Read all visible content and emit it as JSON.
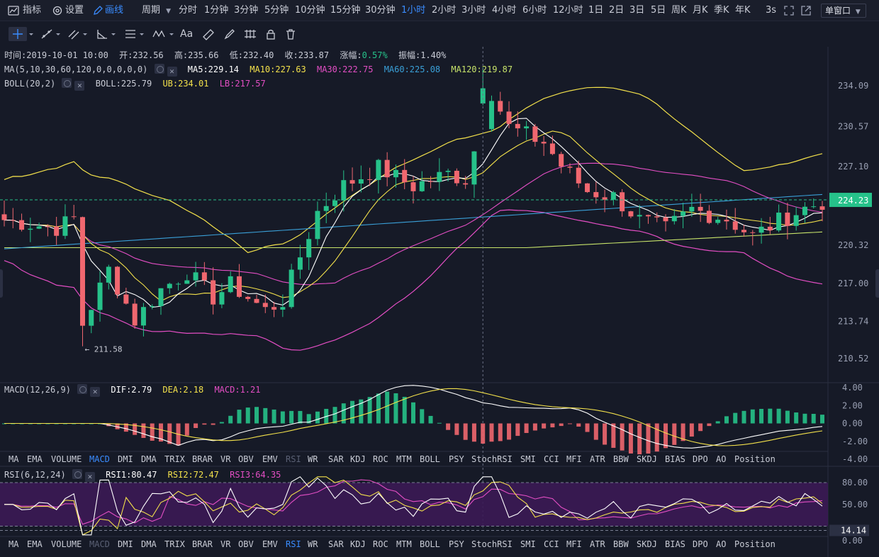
{
  "toolbar": {
    "indicator": "指标",
    "settings": "设置",
    "draw": "画线",
    "period": "周期",
    "intervals": [
      "分时",
      "1分钟",
      "3分钟",
      "5分钟",
      "10分钟",
      "15分钟",
      "30分钟",
      "1小时",
      "2小时",
      "3小时",
      "4小时",
      "6小时",
      "12小时",
      "1日",
      "2日",
      "3日",
      "5日",
      "周K",
      "月K",
      "季K",
      "年K"
    ],
    "active_interval": "1小时",
    "refresh": "3s",
    "window_mode": "单窗口"
  },
  "ohlc": {
    "time_label": "时间:",
    "time": "2019-10-01 10:00",
    "open_label": "开:",
    "open": "232.56",
    "high_label": "高:",
    "high": "235.66",
    "low_label": "低:",
    "low": "232.40",
    "close_label": "收:",
    "close": "233.87",
    "change_label": "涨幅:",
    "change": "0.57%",
    "amplitude_label": "振幅:",
    "amplitude": "1.40%"
  },
  "ma": {
    "name": "MA(5,10,30,60,120,0,0,0,0,0)",
    "ma5": "MA5:229.14",
    "ma10": "MA10:227.63",
    "ma30": "MA30:222.75",
    "ma60": "MA60:225.08",
    "ma120": "MA120:219.87"
  },
  "boll": {
    "name": "BOLL(20,2)",
    "mid": "BOLL:225.79",
    "ub": "UB:234.01",
    "lb": "LB:217.57"
  },
  "macd": {
    "name": "MACD(12,26,9)",
    "dif": "DIF:2.79",
    "dea": "DEA:2.18",
    "macd": "MACD:1.21",
    "axis": [
      "4.00",
      "2.00",
      "0.00",
      "-2.00",
      "-4.00"
    ]
  },
  "rsi": {
    "name": "RSI(6,12,24)",
    "rsi1": "RSI1:80.47",
    "rsi2": "RSI2:72.47",
    "rsi3": "RSI3:64.35",
    "axis": [
      "80.00",
      "50.00",
      "0.00"
    ],
    "current": "14.14"
  },
  "price_axis": [
    "234.09",
    "230.57",
    "227.10",
    "224.23",
    "220.32",
    "217.00",
    "213.74",
    "210.52"
  ],
  "current_price": "224.23",
  "low_marker": "← 211.58",
  "indicator_tabs": [
    "MA",
    "EMA",
    "VOLUME",
    "MACD",
    "DMI",
    "DMA",
    "TRIX",
    "BRAR",
    "VR",
    "OBV",
    "EMV",
    "RSI",
    "WR",
    "SAR",
    "KDJ",
    "ROC",
    "MTM",
    "BOLL",
    "PSY",
    "StochRSI",
    "SMI",
    "CCI",
    "MFI",
    "ATR",
    "BBW",
    "SKDJ",
    "BIAS",
    "DPO",
    "AO",
    "Position"
  ],
  "colors": {
    "up": "#26c28a",
    "down": "#f0676f",
    "ma5": "#ffffff",
    "ma10": "#f3e14b",
    "ma30": "#e34ec4",
    "ma60": "#3aa0d8",
    "ma120": "#c7e36a",
    "accent": "#3a8cff"
  }
}
